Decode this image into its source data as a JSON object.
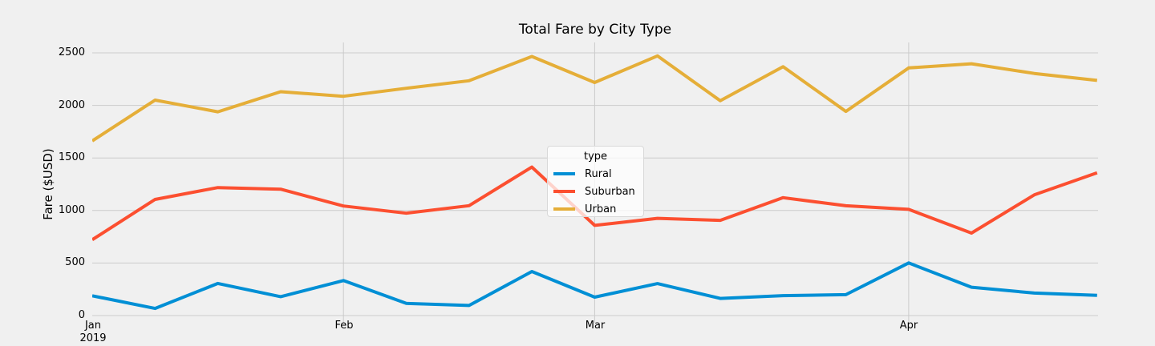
{
  "figure": {
    "background_color": "#f0f0f0",
    "grid_color": "#cbcbcb",
    "text_color": "#000000"
  },
  "chart_data": {
    "type": "line",
    "title": "Total Fare by City Type",
    "xlabel": "",
    "ylabel": "Fare ($USD)",
    "x_unit": "weeks, Jan 2019 through Apr 2019, 17 weekly points per series",
    "y_ticks": [
      0,
      500,
      1000,
      1500,
      2000,
      2500
    ],
    "ylim": [
      0,
      2500
    ],
    "grid": true,
    "x_ticks": [
      {
        "week_index": 0,
        "label": "Jan",
        "year_label": "2019"
      },
      {
        "week_index": 4,
        "label": "Feb"
      },
      {
        "week_index": 8,
        "label": "Mar"
      },
      {
        "week_index": 13,
        "label": "Apr"
      }
    ],
    "legend": {
      "title": "type",
      "position": "center"
    },
    "series": [
      {
        "name": "Rural",
        "color": "#008fd5",
        "values": [
          188,
          68,
          306,
          180,
          333,
          116,
          96,
          419,
          175,
          304,
          163,
          190,
          199,
          501,
          270,
          214,
          192
        ]
      },
      {
        "name": "Suburban",
        "color": "#fc4f30",
        "values": [
          722,
          1105,
          1218,
          1203,
          1043,
          974,
          1046,
          1413,
          858,
          925,
          906,
          1122,
          1045,
          1011,
          785,
          1149,
          1358
        ]
      },
      {
        "name": "Urban",
        "color": "#e5ae38",
        "values": [
          1662,
          2050,
          1939,
          2130,
          2087,
          2163,
          2235,
          2466,
          2218,
          2471,
          2044,
          2368,
          1943,
          2357,
          2396,
          2304,
          2238
        ]
      }
    ]
  }
}
